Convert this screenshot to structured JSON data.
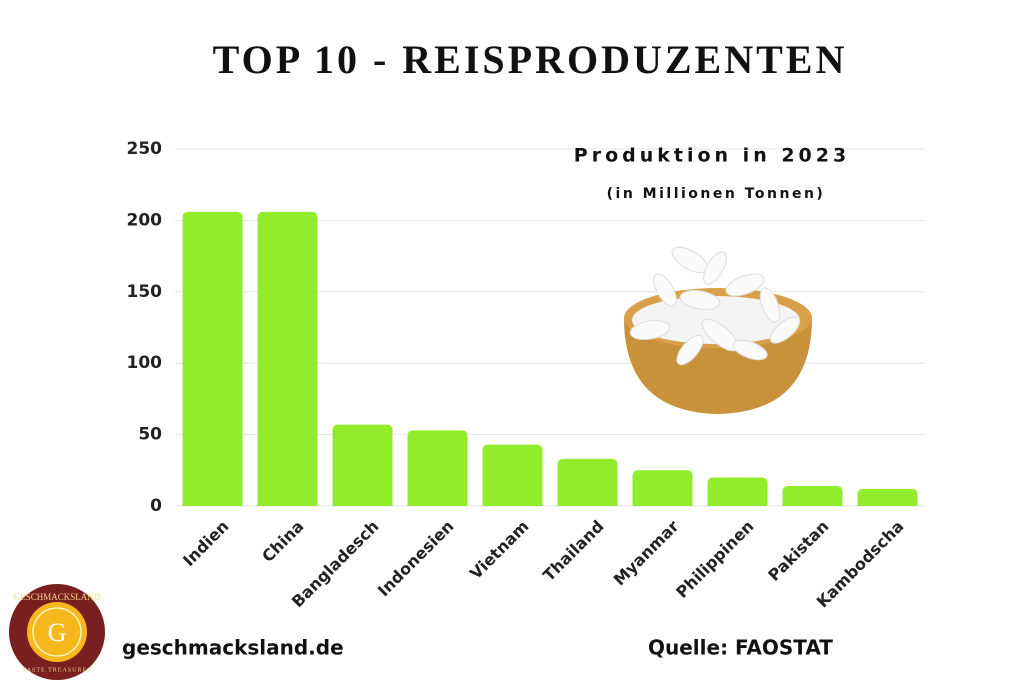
{
  "chart_data": {
    "type": "bar",
    "title": "TOP 10 - REISPRODUZENTEN",
    "subtitle": "Produktion in 2023",
    "unit_note": "(in Millionen Tonnen)",
    "categories": [
      "Indien",
      "China",
      "Bangladesch",
      "Indonesien",
      "Vietnam",
      "Thailand",
      "Myanmar",
      "Philippinen",
      "Pakistan",
      "Kambodscha"
    ],
    "values": [
      206,
      206,
      57,
      53,
      43,
      33,
      25,
      20,
      14,
      12
    ],
    "color": "#93ec2b",
    "ylim": [
      0,
      250
    ],
    "yticks": [
      0,
      50,
      100,
      150,
      200,
      250
    ],
    "grid": true,
    "website": "geschmacksland.de",
    "source": "Quelle: FAOSTAT",
    "logo": {
      "name": "GESCHMACKSLAND",
      "letter": "G",
      "tagline": "TASTE TREASURES"
    }
  }
}
